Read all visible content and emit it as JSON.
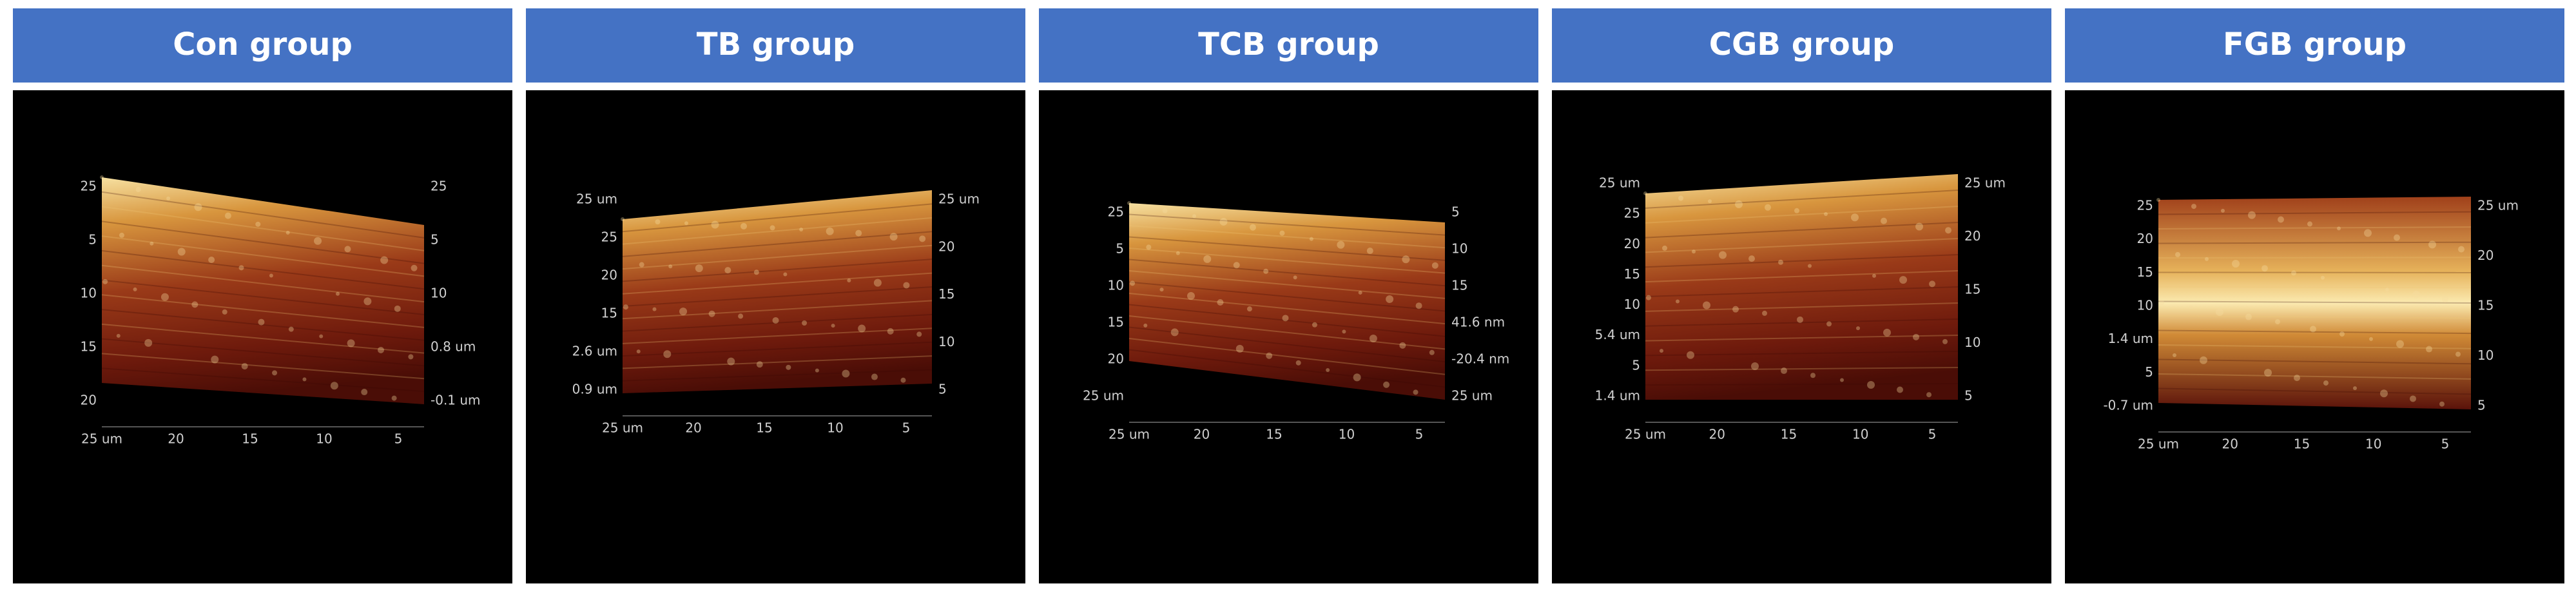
{
  "panels": [
    {
      "title": "Con group",
      "left_labels": [
        "25",
        "5",
        "10",
        "15",
        "20"
      ],
      "right_labels": [
        "25",
        "5",
        "10",
        "0.8 um",
        "-0.1 um"
      ],
      "bottom_labels": [
        "25 um",
        "20",
        "15",
        "10",
        "5"
      ]
    },
    {
      "title": "TB group",
      "left_labels": [
        "25 um",
        "25",
        "20",
        "15",
        "2.6 um",
        "0.9 um"
      ],
      "right_labels": [
        "25 um",
        "20",
        "15",
        "10",
        "5"
      ],
      "bottom_labels": [
        "25 um",
        "20",
        "15",
        "10",
        "5"
      ]
    },
    {
      "title": "TCB group",
      "left_labels": [
        "25",
        "5",
        "10",
        "15",
        "20",
        "25 um"
      ],
      "right_labels": [
        "5",
        "10",
        "15",
        "41.6 nm",
        "-20.4 nm",
        "25 um"
      ],
      "bottom_labels": [
        "25 um",
        "20",
        "15",
        "10",
        "5"
      ]
    },
    {
      "title": "CGB group",
      "left_labels": [
        "25 um",
        "25",
        "20",
        "15",
        "10",
        "5.4 um",
        "5",
        "1.4 um"
      ],
      "right_labels": [
        "25 um",
        "20",
        "15",
        "10",
        "5"
      ],
      "bottom_labels": [
        "25 um",
        "20",
        "15",
        "10",
        "5"
      ]
    },
    {
      "title": "FGB group",
      "left_labels": [
        "25",
        "20",
        "15",
        "10",
        "1.4 um",
        "5",
        "-0.7 um"
      ],
      "right_labels": [
        "25 um",
        "20",
        "15",
        "10",
        "5"
      ],
      "bottom_labels": [
        "25 um",
        "20",
        "15",
        "10",
        "5"
      ]
    }
  ]
}
